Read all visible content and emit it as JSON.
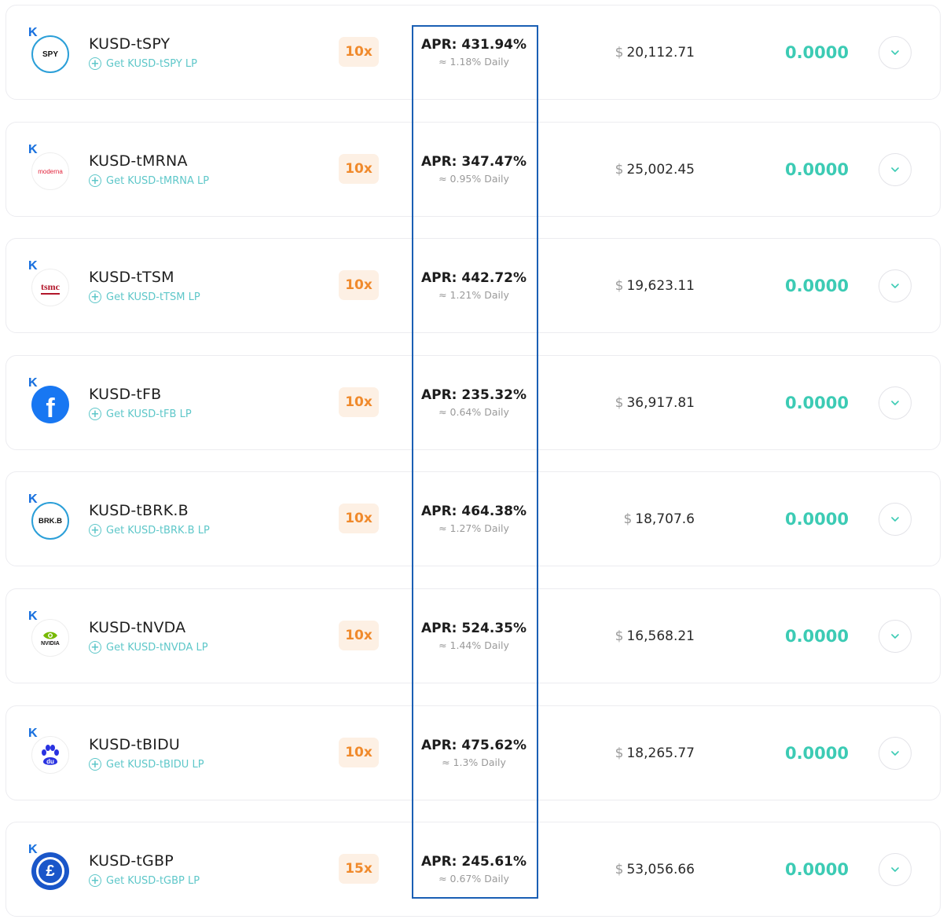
{
  "farms": [
    {
      "pair": "KUSD-tSPY",
      "lp_link": "Get KUSD-tSPY LP",
      "multiplier": "10x",
      "apr": "APR: 431.94%",
      "daily": "≈ 1.18% Daily",
      "currency": "$",
      "liquidity": "20,112.71",
      "earned": "0.0000",
      "logo": "spy-logo",
      "logo_text": "SPY"
    },
    {
      "pair": "KUSD-tMRNA",
      "lp_link": "Get KUSD-tMRNA LP",
      "multiplier": "10x",
      "apr": "APR: 347.47%",
      "daily": "≈ 0.95% Daily",
      "currency": "$",
      "liquidity": "25,002.45",
      "earned": "0.0000",
      "logo": "moderna-logo",
      "logo_text": "moderna"
    },
    {
      "pair": "KUSD-tTSM",
      "lp_link": "Get KUSD-tTSM LP",
      "multiplier": "10x",
      "apr": "APR: 442.72%",
      "daily": "≈ 1.21% Daily",
      "currency": "$",
      "liquidity": "19,623.11",
      "earned": "0.0000",
      "logo": "tsmc-logo",
      "logo_text": "tsmc"
    },
    {
      "pair": "KUSD-tFB",
      "lp_link": "Get KUSD-tFB LP",
      "multiplier": "10x",
      "apr": "APR: 235.32%",
      "daily": "≈ 0.64% Daily",
      "currency": "$",
      "liquidity": "36,917.81",
      "earned": "0.0000",
      "logo": "facebook-logo",
      "logo_text": "f"
    },
    {
      "pair": "KUSD-tBRK.B",
      "lp_link": "Get KUSD-tBRK.B LP",
      "multiplier": "10x",
      "apr": "APR: 464.38%",
      "daily": "≈ 1.27% Daily",
      "currency": "$",
      "liquidity": "18,707.6",
      "earned": "0.0000",
      "logo": "brkb-logo",
      "logo_text": "BRK.B"
    },
    {
      "pair": "KUSD-tNVDA",
      "lp_link": "Get KUSD-tNVDA LP",
      "multiplier": "10x",
      "apr": "APR: 524.35%",
      "daily": "≈ 1.44% Daily",
      "currency": "$",
      "liquidity": "16,568.21",
      "earned": "0.0000",
      "logo": "nvidia-logo",
      "logo_text": "NVIDIA"
    },
    {
      "pair": "KUSD-tBIDU",
      "lp_link": "Get KUSD-tBIDU LP",
      "multiplier": "10x",
      "apr": "APR: 475.62%",
      "daily": "≈ 1.3% Daily",
      "currency": "$",
      "liquidity": "18,265.77",
      "earned": "0.0000",
      "logo": "baidu-logo",
      "logo_text": "du"
    },
    {
      "pair": "KUSD-tGBP",
      "lp_link": "Get KUSD-tGBP LP",
      "multiplier": "15x",
      "apr": "APR: 245.61%",
      "daily": "≈ 0.67% Daily",
      "currency": "$",
      "liquidity": "53,056.66",
      "earned": "0.0000",
      "logo": "gbp-logo",
      "logo_text": "£"
    }
  ],
  "k_badge": "K",
  "colors": {
    "accent_teal": "#3ccbb4",
    "link_teal": "#5ec7c9",
    "multiplier_orange": "#f08a2c",
    "multiplier_bg": "#fdf0e4",
    "highlight_blue": "#1a5fb4"
  }
}
